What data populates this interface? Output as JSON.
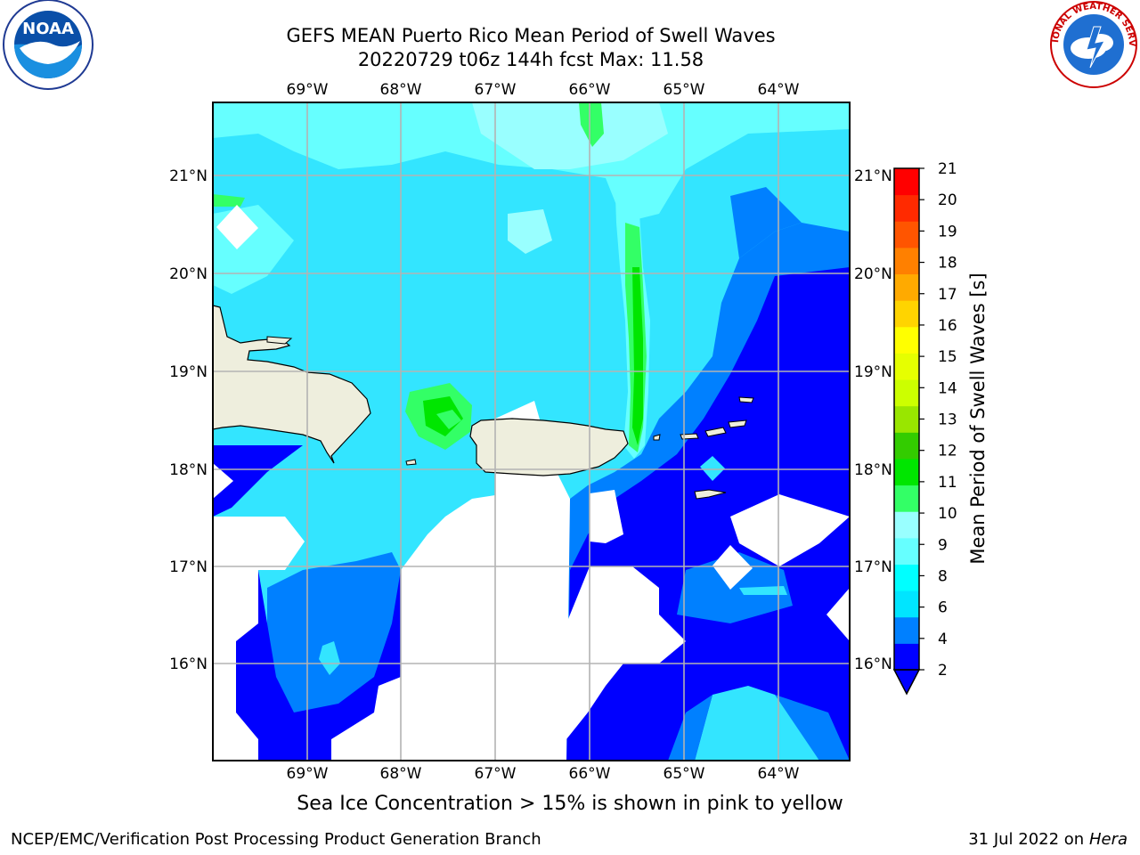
{
  "title": {
    "line1": "GEFS MEAN Puerto Rico Mean Period of Swell Waves",
    "line2": "20220729 t06z 144h fcst   Max: 11.58"
  },
  "logos": {
    "noaa_text": "NOAA",
    "nws_text": "NATIONAL WEATHER SERVICE",
    "noaa_ring_text": "NATIONAL OCEANIC AND ATMOSPHERIC ADMINISTRATION · U.S. DEPARTMENT OF COMMERCE"
  },
  "axes": {
    "lon_labels": [
      "69°W",
      "68°W",
      "67°W",
      "66°W",
      "65°W",
      "64°W"
    ],
    "lat_labels": [
      "21°N",
      "20°N",
      "19°N",
      "18°N",
      "17°N",
      "16°N"
    ]
  },
  "colorbar": {
    "label": "Mean Period of Swell Waves [s]",
    "ticks": [
      "2",
      "4",
      "6",
      "8",
      "9",
      "10",
      "11",
      "12",
      "13",
      "14",
      "15",
      "16",
      "17",
      "18",
      "19",
      "20",
      "21"
    ],
    "colors": [
      "#0000ff",
      "#0080ff",
      "#00e5ff",
      "#00ffff",
      "#66ffff",
      "#99ffff",
      "#33ff66",
      "#00e600",
      "#33cc00",
      "#99e600",
      "#ccff00",
      "#e6ff00",
      "#ffff00",
      "#ffd400",
      "#ffaa00",
      "#ff8000",
      "#ff5500",
      "#ff2a00",
      "#ff0000"
    ],
    "extend_min_color": "#0000ff"
  },
  "footer": {
    "note": "Sea Ice Concentration > 15% is shown in pink to yellow",
    "left": "NCEP/EMC/Verification Post Processing Product Generation Branch",
    "right_date": "31 Jul 2022 on ",
    "right_host": "Hera"
  },
  "map_colors": {
    "land": "#eeeedd",
    "deep_blue": "#0000ff",
    "mid_blue": "#0080ff",
    "cyan": "#00ffff",
    "teal": "#33e5ff",
    "light_cyan": "#99ffff",
    "green": "#33ff66",
    "bright_green": "#00e600",
    "grid": "#b3b3b3"
  }
}
